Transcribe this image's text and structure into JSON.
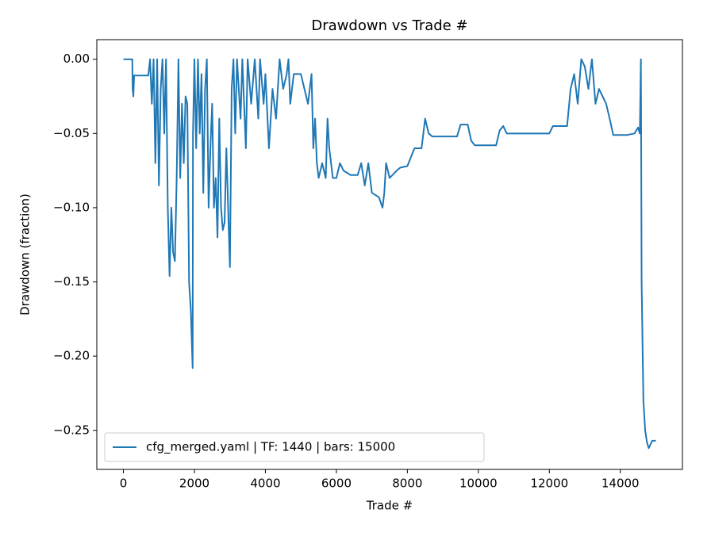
{
  "chart_data": {
    "type": "line",
    "title": "Drawdown vs Trade #",
    "xlabel": "Trade #",
    "ylabel": "Drawdown (fraction)",
    "x": [
      0,
      250,
      260,
      280,
      300,
      700,
      750,
      800,
      850,
      900,
      950,
      1000,
      1050,
      1100,
      1150,
      1200,
      1250,
      1300,
      1350,
      1400,
      1450,
      1500,
      1550,
      1600,
      1650,
      1700,
      1750,
      1800,
      1850,
      1900,
      1950,
      1960,
      2000,
      2050,
      2100,
      2150,
      2200,
      2250,
      2300,
      2350,
      2400,
      2450,
      2500,
      2550,
      2600,
      2650,
      2700,
      2750,
      2800,
      2850,
      2900,
      2950,
      3000,
      3050,
      3100,
      3150,
      3200,
      3300,
      3350,
      3450,
      3500,
      3600,
      3700,
      3800,
      3850,
      3950,
      4000,
      4100,
      4200,
      4300,
      4400,
      4500,
      4600,
      4650,
      4700,
      4800,
      5000,
      5100,
      5200,
      5300,
      5350,
      5400,
      5450,
      5500,
      5600,
      5700,
      5750,
      5800,
      5900,
      6000,
      6100,
      6200,
      6400,
      6600,
      6700,
      6800,
      6900,
      7000,
      7200,
      7300,
      7350,
      7400,
      7500,
      7700,
      7800,
      8000,
      8200,
      8400,
      8500,
      8600,
      8700,
      9400,
      9500,
      9700,
      9800,
      9900,
      10500,
      10600,
      10700,
      10800,
      12000,
      12100,
      12500,
      12600,
      12700,
      12800,
      12900,
      13000,
      13100,
      13200,
      13300,
      13400,
      13600,
      13700,
      13800,
      14200,
      14400,
      14500,
      14550,
      14580,
      14600,
      14650,
      14700,
      14750,
      14800,
      14900,
      15000
    ],
    "series": [
      {
        "name": "cfg_merged.yaml | TF: 1440 | bars: 15000",
        "color": "#1f77b4",
        "values": [
          0,
          0,
          -0.02,
          -0.025,
          -0.011,
          -0.011,
          0,
          -0.03,
          0,
          -0.07,
          0,
          -0.085,
          -0.02,
          0,
          -0.05,
          0,
          -0.1,
          -0.146,
          -0.1,
          -0.13,
          -0.136,
          -0.08,
          0,
          -0.08,
          -0.03,
          -0.07,
          -0.025,
          -0.03,
          -0.15,
          -0.17,
          -0.208,
          -0.05,
          0,
          -0.06,
          0,
          -0.05,
          -0.01,
          -0.09,
          -0.02,
          0,
          -0.1,
          -0.06,
          -0.03,
          -0.1,
          -0.08,
          -0.12,
          -0.04,
          -0.1,
          -0.115,
          -0.11,
          -0.06,
          -0.1,
          -0.14,
          -0.02,
          0,
          -0.05,
          0,
          -0.04,
          0,
          -0.06,
          0,
          -0.03,
          0,
          -0.04,
          0,
          -0.03,
          -0.01,
          -0.06,
          -0.02,
          -0.04,
          0,
          -0.02,
          -0.01,
          0,
          -0.03,
          -0.01,
          -0.01,
          -0.02,
          -0.03,
          -0.01,
          -0.06,
          -0.04,
          -0.07,
          -0.08,
          -0.07,
          -0.08,
          -0.04,
          -0.06,
          -0.08,
          -0.08,
          -0.07,
          -0.075,
          -0.078,
          -0.078,
          -0.07,
          -0.085,
          -0.07,
          -0.09,
          -0.093,
          -0.1,
          -0.09,
          -0.07,
          -0.08,
          -0.075,
          -0.073,
          -0.072,
          -0.06,
          -0.06,
          -0.04,
          -0.05,
          -0.052,
          -0.052,
          -0.044,
          -0.044,
          -0.055,
          -0.058,
          -0.058,
          -0.048,
          -0.045,
          -0.05,
          -0.05,
          -0.045,
          -0.045,
          -0.02,
          -0.01,
          -0.03,
          0,
          -0.005,
          -0.02,
          0,
          -0.03,
          -0.02,
          -0.03,
          -0.04,
          -0.051,
          -0.051,
          -0.05,
          -0.046,
          -0.05,
          0,
          -0.15,
          -0.23,
          -0.25,
          -0.258,
          -0.262,
          -0.257,
          -0.257
        ]
      }
    ],
    "xlim": [
      -750,
      15750
    ],
    "xticks": [
      0,
      2000,
      4000,
      6000,
      8000,
      10000,
      12000,
      14000
    ],
    "ylim": [
      -0.2763,
      0.0132
    ],
    "yticks": [
      {
        "value": 0,
        "label": "0.00"
      },
      {
        "value": -0.05,
        "label": "−0.05"
      },
      {
        "value": -0.1,
        "label": "−0.10"
      },
      {
        "value": -0.15,
        "label": "−0.15"
      },
      {
        "value": -0.2,
        "label": "−0.20"
      },
      {
        "value": -0.25,
        "label": "−0.25"
      }
    ],
    "legend": "lower left"
  }
}
